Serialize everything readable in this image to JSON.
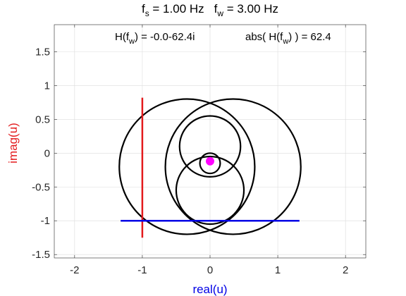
{
  "title": {
    "fs_label": "f",
    "fs_sub": "s",
    "fs_value": " = 1.00  Hz",
    "fw_label": "f",
    "fw_sub": "w",
    "fw_value": " = 3.00  Hz"
  },
  "annotation": {
    "h_prefix": "H(f",
    "h_sub": "w",
    "h_suffix": ")  =  -0.0-62.4i",
    "abs_prefix": "abs( H(f",
    "abs_sub": "w",
    "abs_suffix": ") )  =  62.4"
  },
  "chart_data": {
    "type": "line",
    "xlabel": "real(u)",
    "ylabel": "imag(u)",
    "xlim": [
      -2.3,
      2.3
    ],
    "ylim": [
      -1.55,
      1.9
    ],
    "xticks": [
      -2,
      -1,
      0,
      1,
      2
    ],
    "yticks": [
      -1.5,
      -1,
      -0.5,
      0,
      0.5,
      1,
      1.5
    ],
    "xtick_labels": [
      "-2",
      "-1",
      "0",
      "1",
      "2"
    ],
    "ytick_labels": [
      "-1.5",
      "-1",
      "-0.5",
      "0",
      "0.5",
      "1",
      "1.5"
    ],
    "grid": true,
    "colors": {
      "curve": "#000000",
      "vertical": "#e31a1c",
      "horizontal": "#0000e6",
      "marker": "#ff00ff",
      "ylabel": "#e31a1c",
      "xlabel": "#0000e6"
    },
    "curve_circles": [
      {
        "cx": -0.34,
        "cy": -0.2,
        "r": 1.0
      },
      {
        "cx": 0.34,
        "cy": -0.2,
        "r": 1.0
      },
      {
        "cx": 0.0,
        "cy": 0.1,
        "r": 0.45
      },
      {
        "cx": 0.0,
        "cy": -0.55,
        "r": 0.5
      },
      {
        "cx": 0.0,
        "cy": -0.15,
        "r": 0.15
      }
    ],
    "vertical_line": {
      "x": -1.0,
      "y": [
        -1.25,
        0.82
      ]
    },
    "horizontal_line": {
      "y": -1.0,
      "x": [
        -1.32,
        1.32
      ]
    },
    "marker_point": {
      "x": 0.0,
      "y": -0.12
    }
  }
}
